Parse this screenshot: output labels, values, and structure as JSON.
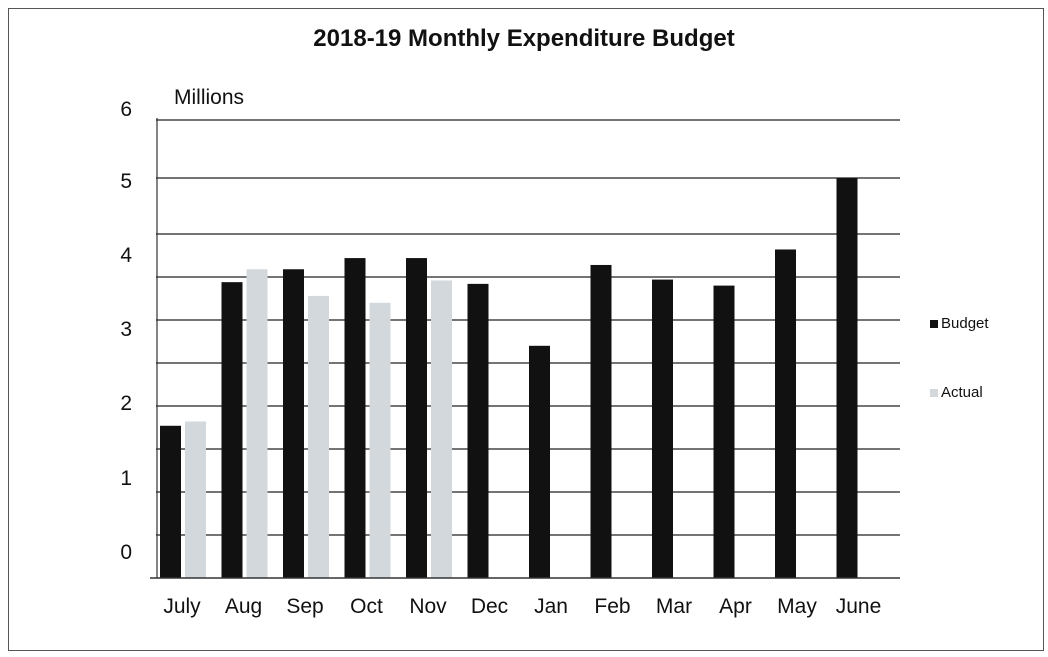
{
  "chart_data": {
    "type": "bar",
    "title": "2018-19 Monthly Expenditure Budget",
    "unit_label": "Millions",
    "categories": [
      "July",
      "Aug",
      "Sep",
      "Oct",
      "Nov",
      "Dec",
      "Jan",
      "Feb",
      "Mar",
      "Apr",
      "May",
      "June"
    ],
    "series": [
      {
        "name": "Budget",
        "color": "#111111",
        "values": [
          1.77,
          3.44,
          3.59,
          3.72,
          3.72,
          3.42,
          2.7,
          3.64,
          3.47,
          3.4,
          3.82,
          5.0
        ]
      },
      {
        "name": "Actual",
        "color": "#d3d8dc",
        "values": [
          1.82,
          3.59,
          3.28,
          3.2,
          3.46,
          null,
          null,
          null,
          null,
          null,
          null,
          null
        ]
      }
    ],
    "y_tick_labels": [
      "0",
      "1",
      "2",
      "3",
      "4",
      "5",
      "6"
    ],
    "ylim": [
      0,
      6
    ],
    "grid": true,
    "legend_position": "right"
  }
}
